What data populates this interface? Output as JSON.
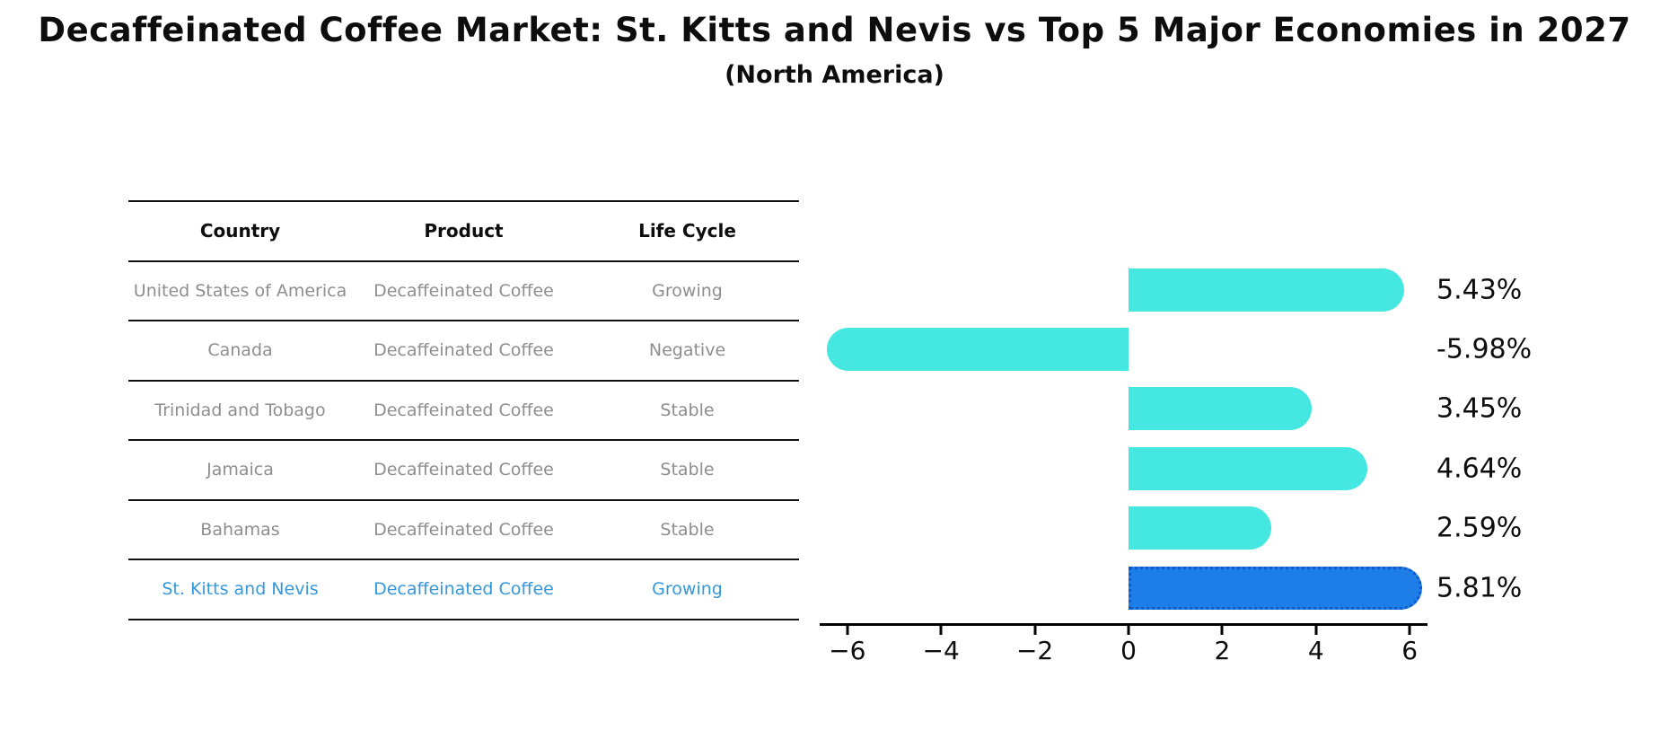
{
  "title": "Decaffeinated Coffee Market: St. Kitts and Nevis vs Top 5 Major Economies in 2027",
  "subtitle": "(North America)",
  "table": {
    "columns": [
      "Country",
      "Product",
      "Life Cycle"
    ],
    "rows": [
      {
        "country": "United States of America",
        "product": "Decaffeinated Coffee",
        "life_cycle": "Growing",
        "highlight": false
      },
      {
        "country": "Canada",
        "product": "Decaffeinated Coffee",
        "life_cycle": "Negative",
        "highlight": false
      },
      {
        "country": "Trinidad and Tobago",
        "product": "Decaffeinated Coffee",
        "life_cycle": "Stable",
        "highlight": false
      },
      {
        "country": "Jamaica",
        "product": "Decaffeinated Coffee",
        "life_cycle": "Stable",
        "highlight": false
      },
      {
        "country": "Bahamas",
        "product": "Decaffeinated Coffee",
        "life_cycle": "Stable",
        "highlight": false
      },
      {
        "country": "St. Kitts and Nevis",
        "product": "Decaffeinated Coffee",
        "life_cycle": "Growing",
        "highlight": true
      }
    ]
  },
  "chart_data": {
    "type": "bar",
    "orientation": "horizontal",
    "title": "Decaffeinated Coffee Market: St. Kitts and Nevis vs Top 5 Major Economies in 2027",
    "subtitle": "(North America)",
    "categories": [
      "United States of America",
      "Canada",
      "Trinidad and Tobago",
      "Jamaica",
      "Bahamas",
      "St. Kitts and Nevis"
    ],
    "values": [
      5.43,
      -5.98,
      3.45,
      4.64,
      2.59,
      5.81
    ],
    "value_labels": [
      "5.43%",
      "-5.98%",
      "3.45%",
      "4.64%",
      "2.59%",
      "5.81%"
    ],
    "unit": "%",
    "highlight_index": 5,
    "xlim": [
      -6.6,
      6.4
    ],
    "x_tick_values": [
      -6,
      -4,
      -2,
      0,
      2,
      4,
      6
    ],
    "x_tick_labels": [
      "−6",
      "−4",
      "−2",
      "0",
      "2",
      "4",
      "6"
    ],
    "grid": false,
    "legend": "none",
    "colors": {
      "bar": "#45e8e0",
      "highlight_bar": "#1e7ee8",
      "highlight_border": "#0e5ac9",
      "highlight_text": "#3598db",
      "row_text": "#8e8e8e",
      "axis": "#000000"
    }
  }
}
